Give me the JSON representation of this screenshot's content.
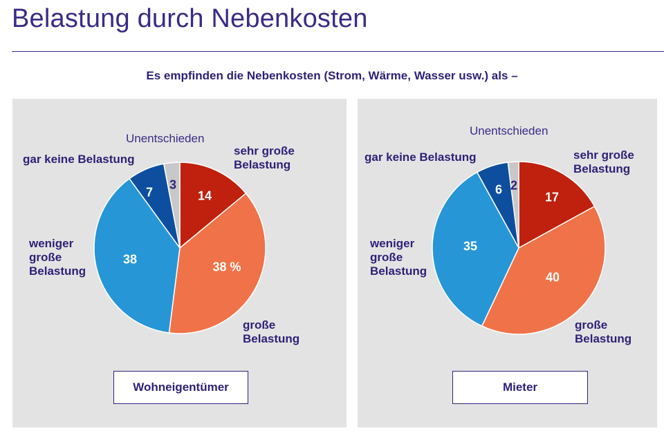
{
  "header": {
    "title": "Belastung durch Nebenkosten",
    "subtitle": "Es empfinden die Nebenkosten (Strom, Wärme, Wasser usw.) als –"
  },
  "colors": {
    "sehr_gross": "#c0200e",
    "gross": "#f07248",
    "weniger_gross": "#2696d6",
    "gar_keine": "#0d4e9e",
    "unentschieden": "#c8c8c8"
  },
  "owner": {
    "group_label": "Wohneigentümer",
    "labels": {
      "unentschieden": "Unentschieden",
      "sehr_gross": "sehr große\nBelastung",
      "gar_keine": "gar keine Belastung",
      "weniger_gross": "weniger\ngroße\nBelastung",
      "gross": "große\nBelastung"
    },
    "value_labels": {
      "sehr_gross": "14",
      "gross": "38 %",
      "weniger_gross": "38",
      "gar_keine": "7",
      "unentschieden": "3"
    }
  },
  "tenant": {
    "group_label": "Mieter",
    "labels": {
      "unentschieden": "Unentschieden",
      "sehr_gross": "sehr große\nBelastung",
      "gar_keine": "gar keine Belastung",
      "weniger_gross": "weniger\ngroße\nBelastung",
      "gross": "große\nBelastung"
    },
    "value_labels": {
      "sehr_gross": "17",
      "gross": "40",
      "weniger_gross": "35",
      "gar_keine": "6",
      "unentschieden": "2"
    }
  },
  "chart_data": [
    {
      "type": "pie",
      "group": "Wohneigentümer",
      "unit": "%",
      "categories": [
        "sehr große Belastung",
        "große Belastung",
        "weniger große Belastung",
        "gar keine Belastung",
        "Unentschieden"
      ],
      "values": [
        14,
        38,
        38,
        7,
        3
      ]
    },
    {
      "type": "pie",
      "group": "Mieter",
      "unit": "%",
      "categories": [
        "sehr große Belastung",
        "große Belastung",
        "weniger große Belastung",
        "gar keine Belastung",
        "Unentschieden"
      ],
      "values": [
        17,
        40,
        35,
        6,
        2
      ]
    }
  ]
}
